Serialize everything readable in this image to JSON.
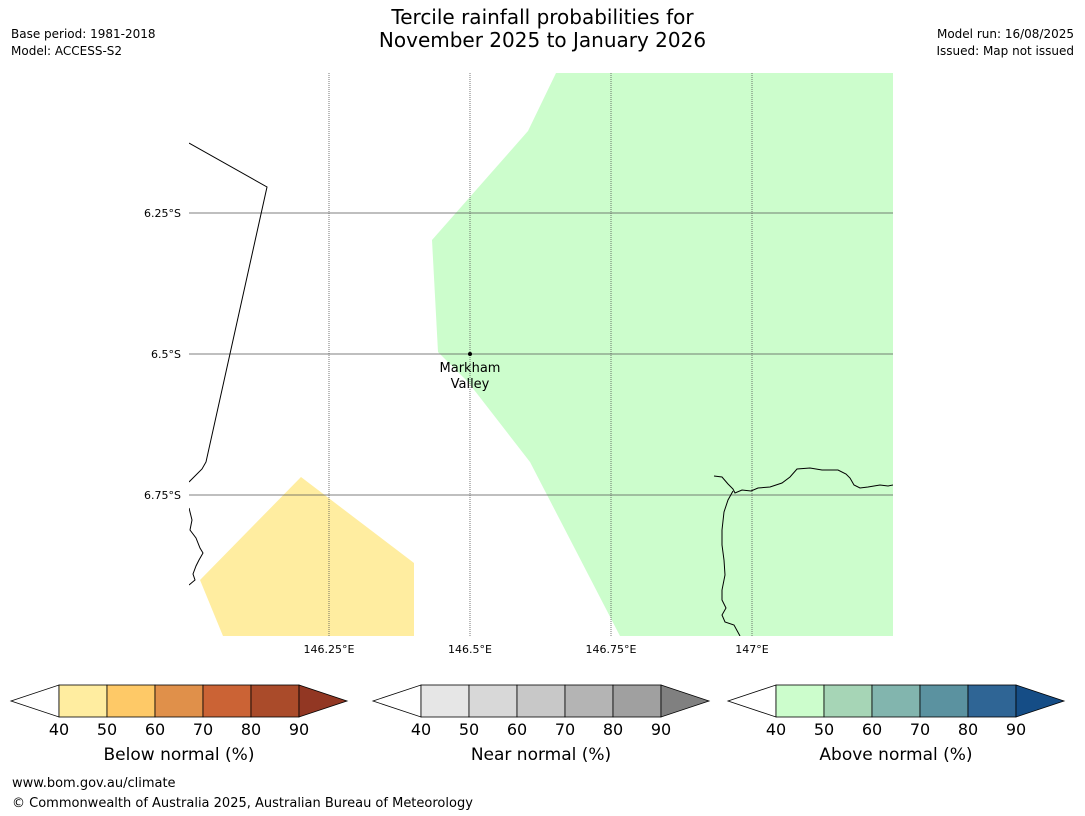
{
  "header": {
    "title_line1": "Tercile rainfall probabilities for",
    "title_line2": "November 2025 to January 2026",
    "base_period": "Base period: 1981-2018",
    "model": "Model: ACCESS-S2",
    "model_run": "Model run: 16/08/2025",
    "issued": "Issued: Map not issued"
  },
  "map": {
    "lat_labels": [
      "6.25°S",
      "6.5°S",
      "6.75°S"
    ],
    "lon_labels": [
      "146.25°E",
      "146.5°E",
      "146.75°E",
      "147°E"
    ],
    "place": {
      "name_line1": "Markham",
      "name_line2": "Valley"
    },
    "colors": {
      "above_40": "#ccfdcc",
      "below_40": "#ffeda0",
      "grid": "#555555",
      "coast": "#000000"
    }
  },
  "colorbars": [
    {
      "label": "Below normal (%)",
      "ticks": [
        "40",
        "50",
        "60",
        "70",
        "80",
        "90"
      ],
      "colors": [
        "#ffffff",
        "#ffeda0",
        "#fec967",
        "#e0904a",
        "#cb6335",
        "#aa4b2a",
        "#923723"
      ]
    },
    {
      "label": "Near normal (%)",
      "ticks": [
        "40",
        "50",
        "60",
        "70",
        "80",
        "90"
      ],
      "colors": [
        "#ffffff",
        "#e6e6e6",
        "#d8d8d8",
        "#c8c8c8",
        "#b4b4b4",
        "#a0a0a0",
        "#808080"
      ]
    },
    {
      "label": "Above normal (%)",
      "ticks": [
        "40",
        "50",
        "60",
        "70",
        "80",
        "90"
      ],
      "colors": [
        "#ffffff",
        "#ccfdcc",
        "#a6d5b6",
        "#82b5ae",
        "#5b92a0",
        "#2f6595",
        "#154d86"
      ]
    }
  ],
  "footer": {
    "url": "www.bom.gov.au/climate",
    "copyright": "© Commonwealth of Australia 2025, Australian Bureau of Meteorology"
  }
}
